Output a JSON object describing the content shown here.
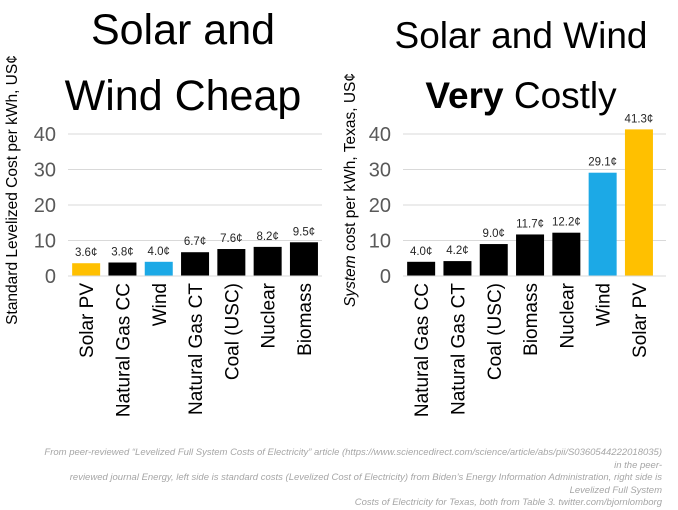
{
  "colors": {
    "black": "#000000",
    "solar": "#ffc000",
    "wind": "#1ca9e6",
    "grid": "#d9d9d9",
    "axis_text": "#595959"
  },
  "footer": {
    "line1": "From peer-reviewed “Levelized Full System Costs of Electricity” article (https://www.sciencedirect.com/science/article/abs/pii/S0360544222018035) in the peer-",
    "line2": "reviewed journal Energy, left side is standard costs (Levelized Cost of Electricity) from Biden’s Energy Information Administration, right side is Levelized Full System",
    "line3": "Costs of Electricity for Texas, both from Table 3. twitter.com/bjornlomborg"
  },
  "chart_data": [
    {
      "type": "bar",
      "title_line1": "Solar and",
      "title_line2": "Wind Cheap",
      "ylabel": "Standard Levelized Cost per kWh, US¢",
      "ylim": [
        0,
        40
      ],
      "yticks": [
        "0",
        "10",
        "20",
        "30",
        "40"
      ],
      "categories": [
        "Solar  PV",
        "Natural  Gas  CC",
        "Wind",
        "Natural  Gas  CT",
        "Coal  (USC)",
        "Nuclear",
        "Biomass"
      ],
      "values": [
        3.6,
        3.8,
        4.0,
        6.7,
        7.6,
        8.2,
        9.5
      ],
      "labels": [
        "3.6¢",
        "3.8¢",
        "4.0¢",
        "6.7¢",
        "7.6¢",
        "8.2¢",
        "9.5¢"
      ],
      "bar_colors": [
        "#ffc000",
        "#000000",
        "#1ca9e6",
        "#000000",
        "#000000",
        "#000000",
        "#000000"
      ]
    },
    {
      "type": "bar",
      "title_line1": "Solar and Wind",
      "title_bold": "Very",
      "title_rest": " Costly",
      "ylabel_italic": "System",
      "ylabel_rest": " cost per kWh, Texas, US¢",
      "ylim": [
        0,
        40
      ],
      "yticks": [
        "0",
        "10",
        "20",
        "30",
        "40"
      ],
      "categories": [
        "Natural  Gas  CC",
        "Natural  Gas  CT",
        "Coal  (USC)",
        "Biomass",
        "Nuclear",
        "Wind",
        "Solar  PV"
      ],
      "values": [
        4.0,
        4.2,
        9.0,
        11.7,
        12.2,
        29.1,
        41.3
      ],
      "labels": [
        "4.0¢",
        "4.2¢",
        "9.0¢",
        "11.7¢",
        "12.2¢",
        "29.1¢",
        "41.3¢"
      ],
      "bar_colors": [
        "#000000",
        "#000000",
        "#000000",
        "#000000",
        "#000000",
        "#1ca9e6",
        "#ffc000"
      ]
    }
  ]
}
